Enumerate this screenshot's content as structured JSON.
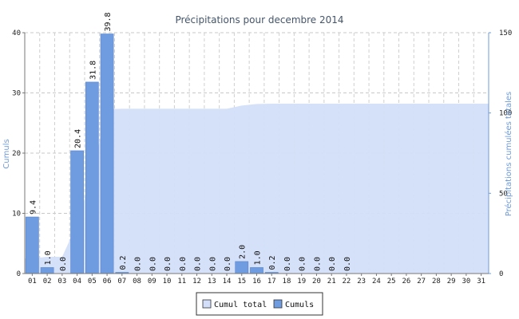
{
  "chart_data": {
    "type": "bar",
    "title": "Précipitations pour decembre 2014",
    "ylabel_left": "Cumuls",
    "ylabel_right": "Précipitations cumulées totales",
    "ylim_left": [
      0,
      40
    ],
    "yticks_left": [
      "0",
      "10",
      "20",
      "30",
      "40"
    ],
    "ylim_right": [
      0,
      150
    ],
    "yticks_right": [
      "0",
      "50",
      "100",
      "150"
    ],
    "grid": true,
    "legend_position": "bottom-center",
    "categories": [
      "01",
      "02",
      "03",
      "04",
      "05",
      "06",
      "07",
      "08",
      "09",
      "10",
      "11",
      "12",
      "13",
      "14",
      "15",
      "16",
      "17",
      "18",
      "19",
      "20",
      "21",
      "22",
      "23",
      "24",
      "25",
      "26",
      "27",
      "28",
      "29",
      "30",
      "31"
    ],
    "series": [
      {
        "name": "Cumuls",
        "kind": "bar",
        "axis": "left",
        "color": "#6f9be0",
        "values": [
          9.4,
          1.0,
          0.0,
          20.4,
          31.8,
          39.8,
          0.2,
          0.0,
          0.0,
          0.0,
          0.0,
          0.0,
          0.0,
          0.0,
          2.0,
          1.0,
          0.2,
          0.0,
          0.0,
          0.0,
          0.0,
          0.0,
          null,
          null,
          null,
          null,
          null,
          null,
          null,
          null,
          null
        ],
        "labels": [
          "9.4",
          "1.0",
          "0.0",
          "20.4",
          "31.8",
          "39.8",
          "0.2",
          "0.0",
          "0.0",
          "0.0",
          "0.0",
          "0.0",
          "0.0",
          "0.0",
          "2.0",
          "1.0",
          "0.2",
          "0.0",
          "0.0",
          "0.0",
          "0.0",
          "0.0",
          "",
          "",
          "",
          "",
          "",
          "",
          "",
          "",
          ""
        ]
      },
      {
        "name": "Cumul total",
        "kind": "area",
        "axis": "right",
        "color": "#d3dff8",
        "values": [
          9.4,
          10.4,
          10.4,
          30.8,
          62.6,
          102.4,
          102.6,
          102.6,
          102.6,
          102.6,
          102.6,
          102.6,
          102.6,
          102.6,
          104.6,
          105.6,
          105.8,
          105.8,
          105.8,
          105.8,
          105.8,
          105.8,
          105.8,
          105.8,
          105.8,
          105.8,
          105.8,
          105.8,
          105.8,
          105.8,
          105.8
        ]
      }
    ]
  }
}
